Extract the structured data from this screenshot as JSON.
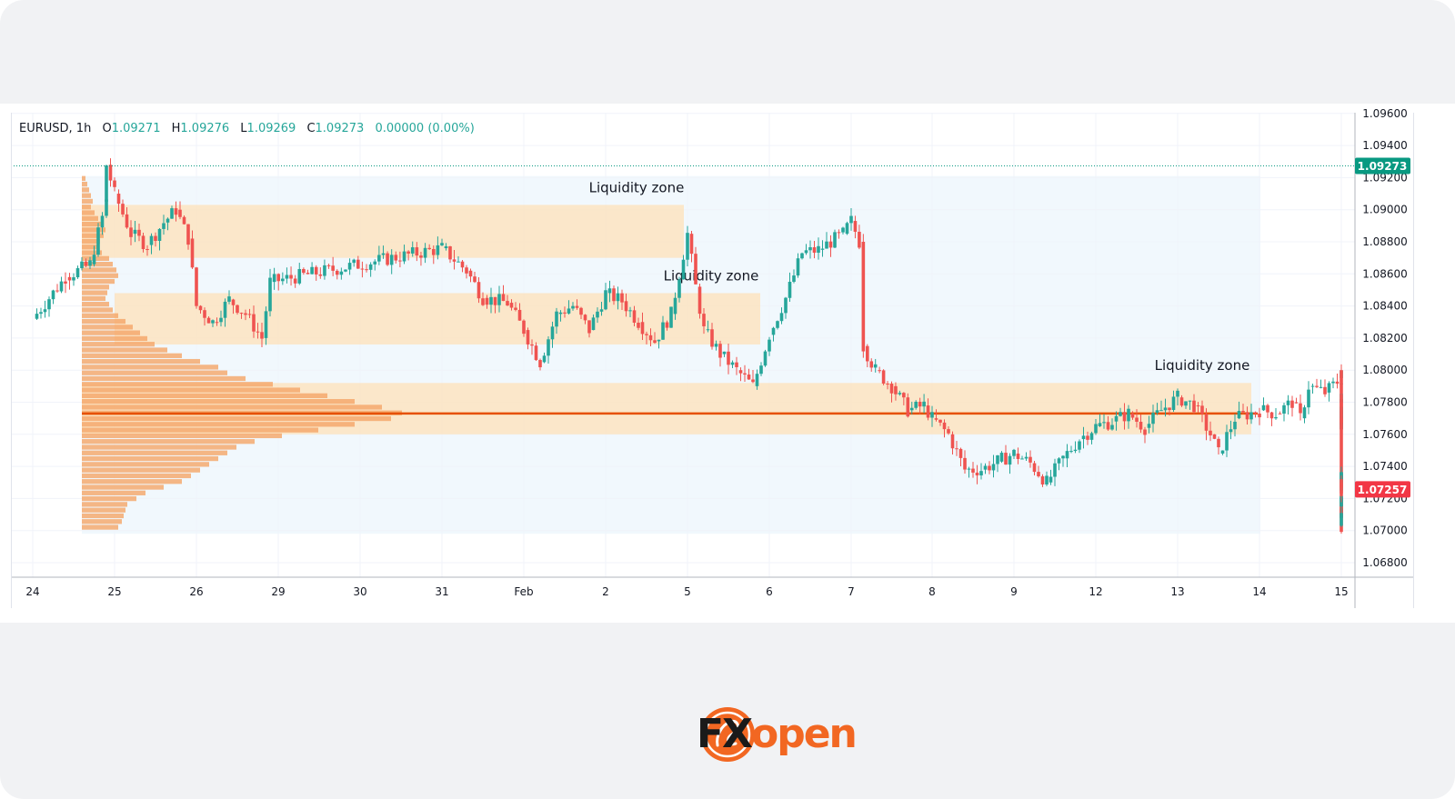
{
  "header": {
    "symbol": "EURUSD, 1h",
    "open_label": "O",
    "open": "1.09271",
    "high_label": "H",
    "high": "1.09276",
    "low_label": "L",
    "low": "1.09269",
    "close_label": "C",
    "close": "1.09273",
    "change": "0.00000 (0.00%)"
  },
  "brand": {
    "fx": "FX",
    "open": "open"
  },
  "colors": {
    "up": "#26a69a",
    "down": "#ef5350",
    "zone": "#fde2b8",
    "poc": "#e65100",
    "profile": "#f5a566",
    "last_price_tag": "#089981",
    "current_price_tag": "#f23645"
  },
  "chart_data": {
    "type": "candlestick",
    "instrument": "EURUSD",
    "interval": "1h",
    "y_range": [
      1.0675,
      1.0962
    ],
    "y_ticks": [
      "1.09600",
      "1.09400",
      "1.09200",
      "1.09000",
      "1.08800",
      "1.08600",
      "1.08400",
      "1.08200",
      "1.08000",
      "1.07800",
      "1.07600",
      "1.07400",
      "1.07200",
      "1.07000",
      "1.06800"
    ],
    "x_ticks": [
      "24",
      "25",
      "26",
      "29",
      "30",
      "31",
      "Feb",
      "2",
      "5",
      "6",
      "7",
      "8",
      "9",
      "12",
      "13",
      "14",
      "15"
    ],
    "price_tags": [
      {
        "label": "1.09273",
        "price": 1.09273,
        "color": "#089981"
      },
      {
        "label": "1.07257",
        "price": 1.07257,
        "color": "#f23645"
      }
    ],
    "zones": [
      {
        "label": "Liquidity zone",
        "from": "25",
        "to": "5",
        "low": 1.087,
        "high": 1.0903
      },
      {
        "label": "Liquidity zone",
        "from": "26",
        "to": "6",
        "low": 1.0816,
        "high": 1.0848
      },
      {
        "label": "Liquidity zone",
        "from": "26",
        "to": "14",
        "low": 1.076,
        "high": 1.0792
      }
    ],
    "point_of_control": 1.0773,
    "price_path": [
      [
        "24",
        1.0832
      ],
      [
        "24.4",
        1.0858
      ],
      [
        "24.7",
        1.0866
      ],
      [
        "24.9",
        1.0905
      ],
      [
        "24.9",
        1.0928
      ],
      [
        "25",
        1.091
      ],
      [
        "25.2",
        1.0885
      ],
      [
        "25.4",
        1.0878
      ],
      [
        "25.6",
        1.0892
      ],
      [
        "25.75",
        1.09
      ],
      [
        "25.9",
        1.0882
      ],
      [
        "26",
        1.084
      ],
      [
        "26.2",
        1.083
      ],
      [
        "26.4",
        1.0844
      ],
      [
        "26.6",
        1.0835
      ],
      [
        "26.8",
        1.082
      ],
      [
        "26.9",
        1.0855
      ],
      [
        "29",
        1.0876
      ],
      [
        "29.3",
        1.0862
      ],
      [
        "29.5",
        1.0845
      ],
      [
        "29.8",
        1.0842
      ],
      [
        "30",
        1.0825
      ],
      [
        "30.2",
        1.0805
      ],
      [
        "30.4",
        1.0835
      ],
      [
        "30.6",
        1.084
      ],
      [
        "30.8",
        1.0825
      ],
      [
        "31",
        1.0848
      ],
      [
        "31.2",
        1.0843
      ],
      [
        "31.4",
        1.083
      ],
      [
        "31.6",
        1.0818
      ],
      [
        "31.8",
        1.0835
      ],
      [
        "32",
        1.0885
      ],
      [
        "32.1",
        1.0852
      ],
      [
        "32.2",
        1.0825
      ],
      [
        "32.4",
        1.081
      ],
      [
        "32.6",
        1.08
      ],
      [
        "32.8",
        1.079
      ],
      [
        "33",
        1.0822
      ],
      [
        "33.2",
        1.0845
      ],
      [
        "33.4",
        1.0873
      ],
      [
        "33.6",
        1.0875
      ],
      [
        "33.9",
        1.0885
      ],
      [
        "34",
        1.0893
      ],
      [
        "34.1",
        1.088
      ],
      [
        "34.15",
        1.0815
      ],
      [
        "34.3",
        1.08
      ],
      [
        "34.5",
        1.079
      ],
      [
        "34.7",
        1.0775
      ],
      [
        "34.9",
        1.0778
      ],
      [
        "35",
        1.077
      ],
      [
        "35.2",
        1.076
      ],
      [
        "35.4",
        1.0738
      ],
      [
        "35.6",
        1.0738
      ],
      [
        "35.8",
        1.0743
      ],
      [
        "36",
        1.0748
      ],
      [
        "36.2",
        1.0742
      ],
      [
        "36.4",
        1.073
      ],
      [
        "36.6",
        1.0745
      ],
      [
        "36.8",
        1.0757
      ],
      [
        "37",
        1.0765
      ],
      [
        "37.2",
        1.0768
      ],
      [
        "37.4",
        1.0773
      ],
      [
        "37.6",
        1.0764
      ],
      [
        "37.8",
        1.0775
      ],
      [
        "38",
        1.0783
      ],
      [
        "38.2",
        1.0778
      ],
      [
        "38.4",
        1.076
      ],
      [
        "38.5",
        1.0748
      ],
      [
        "38.7",
        1.077
      ],
      [
        "39",
        1.0775
      ],
      [
        "39.2",
        1.0773
      ],
      [
        "39.4",
        1.078
      ],
      [
        "39.5",
        1.077
      ],
      [
        "39.6",
        1.079
      ],
      [
        "39.8",
        1.0786
      ],
      [
        "40",
        1.0795
      ],
      [
        "40.2",
        1.08
      ],
      [
        "40.3",
        1.0782
      ],
      [
        "40.5",
        1.0773
      ],
      [
        "40.7",
        1.0775
      ],
      [
        "41",
        1.077
      ],
      [
        "41.2",
        1.0763
      ],
      [
        "41.4",
        1.0775
      ],
      [
        "41.6",
        1.077
      ],
      [
        "41.7",
        1.078
      ],
      [
        "41.8",
        1.0785
      ],
      [
        "41.9",
        1.073
      ],
      [
        "42",
        1.0708
      ],
      [
        "42.2",
        1.0712
      ],
      [
        "42.4",
        1.0708
      ],
      [
        "42.6",
        1.0712
      ],
      [
        "42.8",
        1.0718
      ],
      [
        "43",
        1.0703
      ],
      [
        "43.2",
        1.0715
      ],
      [
        "43.4",
        1.0725
      ],
      [
        "43.6",
        1.0735
      ],
      [
        "43.8",
        1.073
      ],
      [
        "44",
        1.0732
      ],
      [
        "44.1",
        1.0728
      ],
      [
        "44.2",
        1.0726
      ]
    ]
  }
}
